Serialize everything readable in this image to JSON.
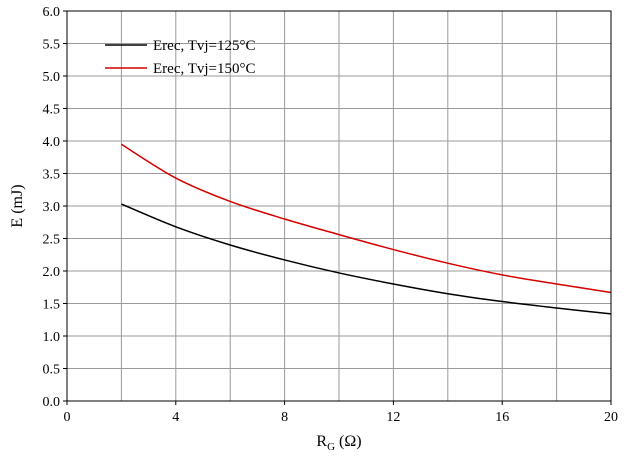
{
  "chart_data": {
    "type": "line",
    "title": "",
    "xlabel_main": "R",
    "xlabel_sub": "G",
    "xlabel_unit": " (Ω)",
    "ylabel": "E (mJ)",
    "xlim": [
      0,
      20
    ],
    "ylim": [
      0.0,
      6.0
    ],
    "xticks": [
      "0",
      "4",
      "8",
      "12",
      "16",
      "20"
    ],
    "xtick_values": [
      0,
      4,
      8,
      12,
      16,
      20
    ],
    "yticks": [
      "0.0",
      "0.5",
      "1.0",
      "1.5",
      "2.0",
      "2.5",
      "3.0",
      "3.5",
      "4.0",
      "4.5",
      "5.0",
      "5.5",
      "6.0"
    ],
    "ytick_values": [
      0.0,
      0.5,
      1.0,
      1.5,
      2.0,
      2.5,
      3.0,
      3.5,
      4.0,
      4.5,
      5.0,
      5.5,
      6.0
    ],
    "grid": true,
    "x_grid_step": 2,
    "legend_position": "top-left",
    "series": [
      {
        "name": "Erec, Tvj=125°C",
        "color": "#000000",
        "x": [
          2,
          4,
          6,
          8,
          10,
          12,
          14,
          16,
          18,
          20
        ],
        "y": [
          3.03,
          2.68,
          2.4,
          2.17,
          1.97,
          1.8,
          1.65,
          1.53,
          1.43,
          1.34
        ]
      },
      {
        "name": "Erec, Tvj=150°C",
        "color": "#d40000",
        "x": [
          2,
          4,
          6,
          8,
          10,
          12,
          14,
          16,
          18,
          20
        ],
        "y": [
          3.95,
          3.43,
          3.07,
          2.8,
          2.56,
          2.33,
          2.12,
          1.94,
          1.8,
          1.67
        ]
      }
    ]
  }
}
